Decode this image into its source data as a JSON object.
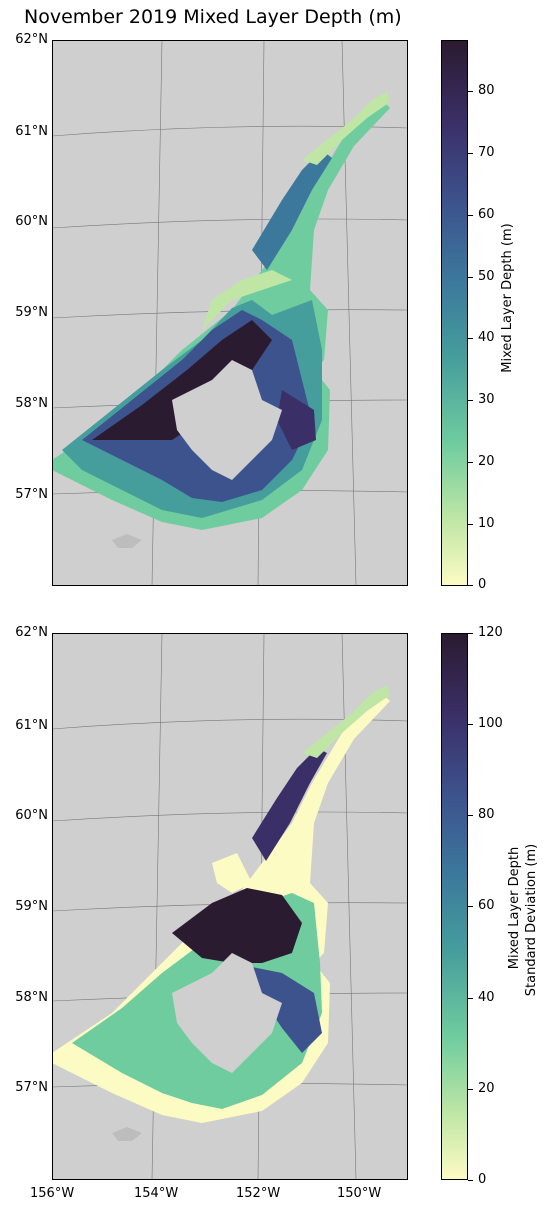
{
  "title": "November 2019 Mixed Layer Depth (m)",
  "lat_labels": [
    "62°N",
    "61°N",
    "60°N",
    "59°N",
    "58°N",
    "57°N"
  ],
  "lon_labels": [
    "156°W",
    "154°W",
    "152°W",
    "150°W"
  ],
  "panels": [
    {
      "name": "mixed-layer-depth",
      "colorbar_label": "Mixed Layer Depth (m)",
      "colorbar_ticks": [
        "0",
        "10",
        "20",
        "30",
        "40",
        "50",
        "60",
        "70",
        "80"
      ],
      "colorbar_range": [
        0,
        88
      ]
    },
    {
      "name": "mixed-layer-depth-std",
      "colorbar_label_line1": "Mixed Layer Depth",
      "colorbar_label_line2": "Standard Deviation (m)",
      "colorbar_ticks": [
        "0",
        "20",
        "40",
        "60",
        "80",
        "100",
        "120"
      ],
      "colorbar_range": [
        0,
        120
      ]
    }
  ],
  "colormap": [
    "#fdfbc4",
    "#bfe6a5",
    "#6fcc9f",
    "#459d9c",
    "#3c789c",
    "#3d538e",
    "#3b2f67",
    "#2a1b30"
  ],
  "land_color": "#cfcfcf"
}
